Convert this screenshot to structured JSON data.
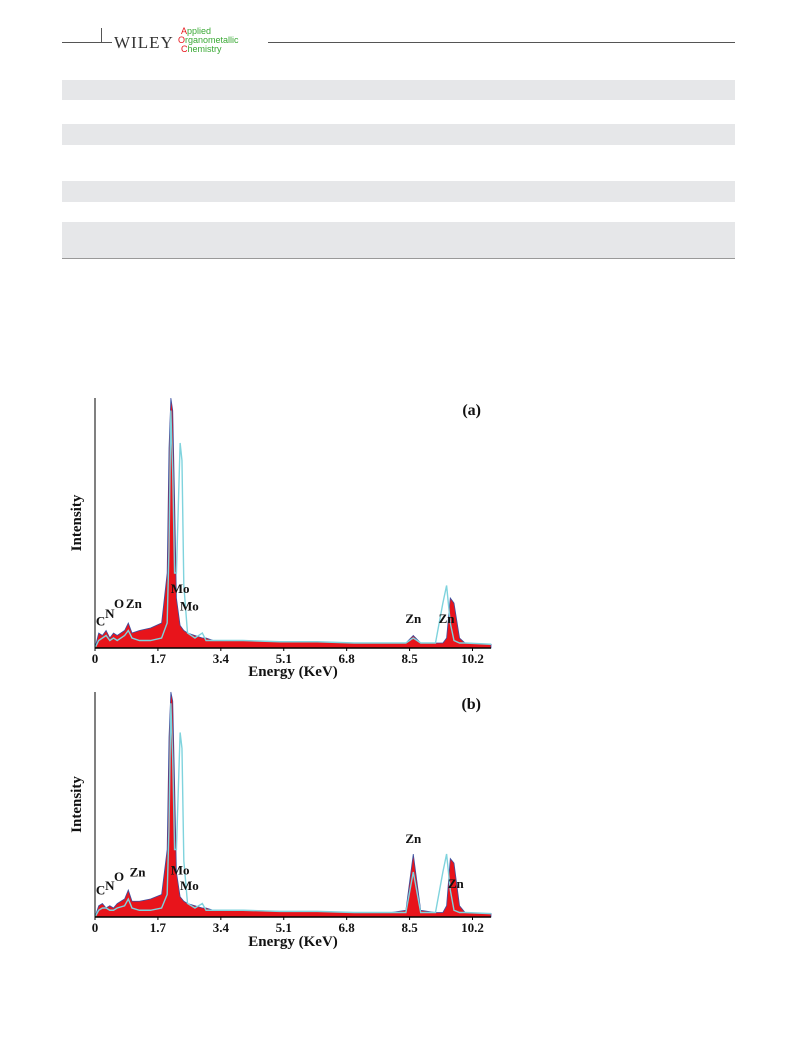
{
  "header": {
    "publisher": "WILEY",
    "journal": [
      "Applied",
      "Organometallic",
      "Chemistry"
    ]
  },
  "chart_data": [
    {
      "type": "area",
      "title": "(a)",
      "xlabel": "Energy (KeV)",
      "ylabel": "Intensity",
      "xlim": [
        0,
        10.7
      ],
      "xticks": [
        0,
        1.7,
        3.4,
        5.1,
        6.8,
        8.5,
        10.2
      ],
      "ylim": [
        0,
        100
      ],
      "x": [
        0,
        0.1,
        0.2,
        0.3,
        0.4,
        0.5,
        0.6,
        0.8,
        0.9,
        1.0,
        1.2,
        1.5,
        1.8,
        1.95,
        2.0,
        2.05,
        2.1,
        2.15,
        2.2,
        2.3,
        2.35,
        2.4,
        2.5,
        2.7,
        2.9,
        3.0,
        3.2,
        3.5,
        4.0,
        5.0,
        6.0,
        7.0,
        8.0,
        8.4,
        8.6,
        8.8,
        9.2,
        9.4,
        9.5,
        9.6,
        9.7,
        9.85,
        10.0,
        10.7
      ],
      "series": [
        {
          "color": "#e8141b",
          "values": [
            0,
            6,
            5,
            7,
            4,
            6,
            5,
            7,
            10,
            6,
            7,
            8,
            10,
            30,
            80,
            100,
            95,
            60,
            20,
            9,
            8,
            7,
            6,
            5,
            4,
            4,
            3,
            3,
            3,
            2.5,
            2.5,
            2,
            2,
            2,
            5,
            2,
            2,
            2,
            4,
            20,
            18,
            4,
            2,
            1.5
          ]
        },
        {
          "color": "#7fd3dd",
          "values": [
            0,
            3,
            4,
            5,
            3,
            4,
            3,
            5,
            7,
            4,
            3,
            3,
            4,
            10,
            40,
            95,
            70,
            30,
            30,
            82,
            75,
            25,
            6,
            4,
            6,
            3,
            3,
            3,
            3,
            2.5,
            2.5,
            2,
            2,
            2,
            4,
            2,
            2,
            18,
            25,
            10,
            3,
            2,
            2,
            1.5
          ]
        }
      ],
      "annotations": [
        {
          "text": "C",
          "x": 0.15,
          "y": 9
        },
        {
          "text": "N",
          "x": 0.4,
          "y": 12
        },
        {
          "text": "O",
          "x": 0.65,
          "y": 16
        },
        {
          "text": "Zn",
          "x": 1.05,
          "y": 16
        },
        {
          "text": "Mo",
          "x": 2.3,
          "y": 22
        },
        {
          "text": "Mo",
          "x": 2.55,
          "y": 15
        },
        {
          "text": "Zn",
          "x": 8.6,
          "y": 10
        },
        {
          "text": "Zn",
          "x": 9.5,
          "y": 10
        }
      ]
    },
    {
      "type": "area",
      "title": "(b)",
      "xlabel": "Energy (KeV)",
      "ylabel": "Intensity",
      "xlim": [
        0,
        10.7
      ],
      "xticks": [
        0,
        1.7,
        3.4,
        5.1,
        6.8,
        8.5,
        10.2
      ],
      "ylim": [
        0,
        100
      ],
      "x": [
        0,
        0.1,
        0.2,
        0.3,
        0.4,
        0.5,
        0.6,
        0.8,
        0.9,
        1.0,
        1.2,
        1.5,
        1.8,
        1.95,
        2.0,
        2.05,
        2.1,
        2.15,
        2.2,
        2.3,
        2.35,
        2.4,
        2.5,
        2.7,
        2.9,
        3.0,
        3.2,
        3.5,
        4.0,
        5.0,
        6.0,
        7.0,
        8.0,
        8.4,
        8.6,
        8.8,
        9.2,
        9.4,
        9.5,
        9.6,
        9.7,
        9.85,
        10.0,
        10.7
      ],
      "series": [
        {
          "color": "#e8141b",
          "values": [
            0,
            5,
            6,
            4,
            5,
            4,
            6,
            8,
            12,
            7,
            7,
            8,
            10,
            30,
            80,
            100,
            96,
            60,
            20,
            9,
            8,
            7,
            6,
            5,
            4,
            4,
            3,
            3,
            3,
            2.5,
            2.5,
            2,
            2,
            3,
            28,
            3,
            2,
            2,
            5,
            26,
            24,
            5,
            2,
            1.5
          ]
        },
        {
          "color": "#7fd3dd",
          "values": [
            0,
            3,
            4,
            4,
            3,
            3,
            4,
            5,
            8,
            4,
            3,
            3,
            4,
            10,
            40,
            95,
            70,
            30,
            30,
            82,
            75,
            25,
            6,
            4,
            6,
            3,
            3,
            3,
            3,
            2.5,
            2.5,
            2,
            2,
            2,
            20,
            2,
            2,
            20,
            28,
            12,
            3,
            2,
            2,
            1.5
          ]
        }
      ],
      "annotations": [
        {
          "text": "C",
          "x": 0.15,
          "y": 10
        },
        {
          "text": "N",
          "x": 0.4,
          "y": 12
        },
        {
          "text": "O",
          "x": 0.65,
          "y": 16
        },
        {
          "text": "Zn",
          "x": 1.15,
          "y": 18
        },
        {
          "text": "Mo",
          "x": 2.3,
          "y": 19
        },
        {
          "text": "Mo",
          "x": 2.55,
          "y": 12
        },
        {
          "text": "Zn",
          "x": 8.6,
          "y": 33
        },
        {
          "text": "Zn",
          "x": 9.75,
          "y": 13
        }
      ]
    }
  ]
}
